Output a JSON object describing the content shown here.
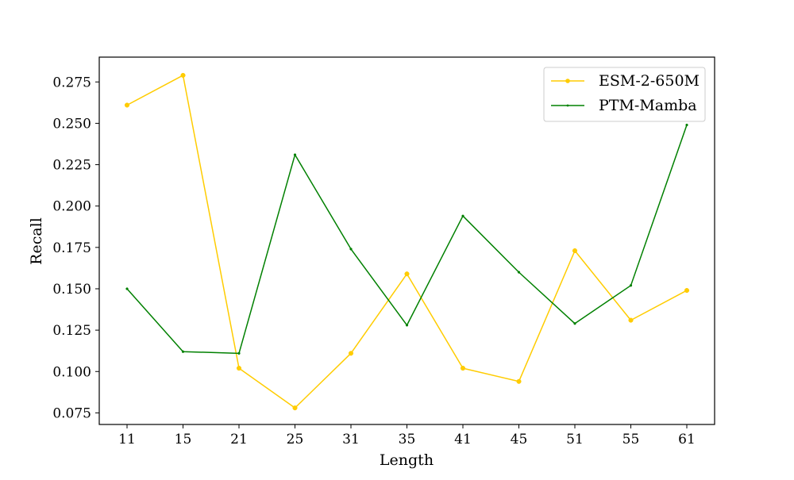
{
  "chart_data": {
    "type": "line",
    "title": "",
    "xlabel": "Length",
    "ylabel": "Recall",
    "categories": [
      "11",
      "15",
      "21",
      "25",
      "31",
      "35",
      "41",
      "45",
      "51",
      "55",
      "61"
    ],
    "ylim": [
      0.068,
      0.29
    ],
    "yticks": [
      0.075,
      0.1,
      0.125,
      0.15,
      0.175,
      0.2,
      0.225,
      0.25,
      0.275
    ],
    "ytick_labels": [
      "0.075",
      "0.100",
      "0.125",
      "0.150",
      "0.175",
      "0.200",
      "0.225",
      "0.250",
      "0.275"
    ],
    "grid": false,
    "legend_position": "top-right",
    "series": [
      {
        "name": "ESM-2-650M",
        "color": "#ffcc00",
        "marker": "circle",
        "values": [
          0.261,
          0.279,
          0.102,
          0.078,
          0.111,
          0.159,
          0.102,
          0.094,
          0.173,
          0.131,
          0.149
        ]
      },
      {
        "name": "PTM-Mamba",
        "color": "#008000",
        "marker": "point",
        "values": [
          0.15,
          0.112,
          0.111,
          0.231,
          0.174,
          0.128,
          0.194,
          0.16,
          0.129,
          0.152,
          0.249
        ]
      }
    ]
  }
}
